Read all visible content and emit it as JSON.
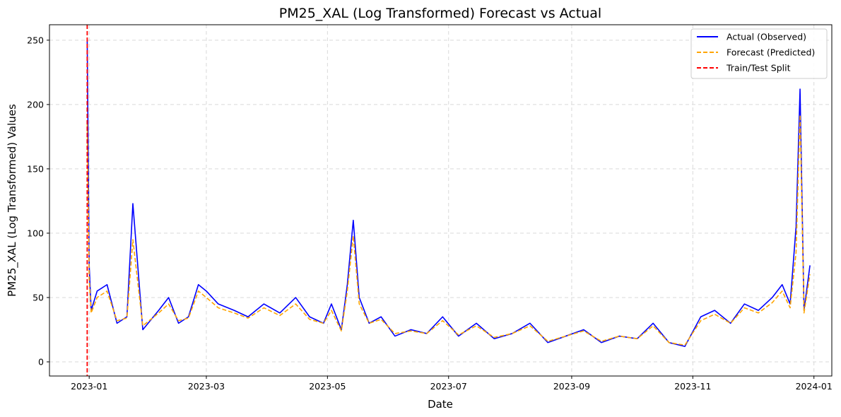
{
  "chart_data": {
    "type": "line",
    "title": "PM25_XAL (Log Transformed) Forecast vs Actual",
    "xlabel": "Date",
    "ylabel": "PM25_XAL (Log Transformed) Values",
    "xlim": [
      "2022-12-12",
      "2024-01-10"
    ],
    "ylim": [
      -11,
      262
    ],
    "x_ticks": [
      "2023-01",
      "2023-03",
      "2023-05",
      "2023-07",
      "2023-09",
      "2023-11",
      "2024-01"
    ],
    "y_ticks": [
      0,
      50,
      100,
      150,
      200,
      250
    ],
    "grid": true,
    "legend_position": "top-right",
    "split_date": "2022-12-31",
    "series": [
      {
        "name": "Actual (Observed)",
        "color": "#0000ff",
        "style": "solid",
        "x": [
          "2022-12-31",
          "2023-01-01",
          "2023-01-02",
          "2023-01-05",
          "2023-01-10",
          "2023-01-15",
          "2023-01-20",
          "2023-01-23",
          "2023-01-28",
          "2023-02-05",
          "2023-02-10",
          "2023-02-15",
          "2023-02-20",
          "2023-02-25",
          "2023-03-01",
          "2023-03-07",
          "2023-03-15",
          "2023-03-22",
          "2023-03-30",
          "2023-04-07",
          "2023-04-15",
          "2023-04-22",
          "2023-04-29",
          "2023-05-03",
          "2023-05-08",
          "2023-05-11",
          "2023-05-14",
          "2023-05-17",
          "2023-05-22",
          "2023-05-28",
          "2023-06-04",
          "2023-06-12",
          "2023-06-20",
          "2023-06-28",
          "2023-07-06",
          "2023-07-15",
          "2023-07-24",
          "2023-08-02",
          "2023-08-11",
          "2023-08-20",
          "2023-08-29",
          "2023-09-07",
          "2023-09-16",
          "2023-09-25",
          "2023-10-04",
          "2023-10-12",
          "2023-10-20",
          "2023-10-28",
          "2023-11-05",
          "2023-11-12",
          "2023-11-20",
          "2023-11-27",
          "2023-12-04",
          "2023-12-11",
          "2023-12-16",
          "2023-12-20",
          "2023-12-23",
          "2023-12-25",
          "2023-12-27",
          "2023-12-30"
        ],
        "values": [
          250,
          75,
          40,
          55,
          60,
          30,
          35,
          123,
          25,
          40,
          50,
          30,
          35,
          60,
          55,
          45,
          40,
          35,
          45,
          38,
          50,
          35,
          30,
          45,
          25,
          60,
          110,
          50,
          30,
          35,
          20,
          25,
          22,
          35,
          20,
          30,
          18,
          22,
          30,
          15,
          20,
          25,
          15,
          20,
          18,
          30,
          15,
          12,
          35,
          40,
          30,
          45,
          40,
          50,
          60,
          45,
          105,
          212,
          40,
          75
        ]
      },
      {
        "name": "Forecast (Predicted)",
        "color": "#ffa500",
        "style": "dashed",
        "x": [
          "2022-12-31",
          "2023-01-01",
          "2023-01-02",
          "2023-01-05",
          "2023-01-10",
          "2023-01-15",
          "2023-01-20",
          "2023-01-23",
          "2023-01-28",
          "2023-02-05",
          "2023-02-10",
          "2023-02-15",
          "2023-02-20",
          "2023-02-25",
          "2023-03-01",
          "2023-03-07",
          "2023-03-15",
          "2023-03-22",
          "2023-03-30",
          "2023-04-07",
          "2023-04-15",
          "2023-04-22",
          "2023-04-29",
          "2023-05-03",
          "2023-05-08",
          "2023-05-11",
          "2023-05-14",
          "2023-05-17",
          "2023-05-22",
          "2023-05-28",
          "2023-06-04",
          "2023-06-12",
          "2023-06-20",
          "2023-06-28",
          "2023-07-06",
          "2023-07-15",
          "2023-07-24",
          "2023-08-02",
          "2023-08-11",
          "2023-08-20",
          "2023-08-29",
          "2023-09-07",
          "2023-09-16",
          "2023-09-25",
          "2023-10-04",
          "2023-10-12",
          "2023-10-20",
          "2023-10-28",
          "2023-11-05",
          "2023-11-12",
          "2023-11-20",
          "2023-11-27",
          "2023-12-04",
          "2023-12-11",
          "2023-12-16",
          "2023-12-20",
          "2023-12-23",
          "2023-12-25",
          "2023-12-27",
          "2023-12-30"
        ],
        "values": [
          185,
          65,
          38,
          50,
          55,
          32,
          34,
          95,
          28,
          38,
          45,
          32,
          34,
          55,
          50,
          42,
          38,
          34,
          42,
          36,
          45,
          33,
          30,
          40,
          24,
          55,
          98,
          45,
          30,
          33,
          22,
          24,
          22,
          32,
          21,
          28,
          19,
          22,
          28,
          16,
          20,
          24,
          16,
          20,
          18,
          28,
          15,
          13,
          32,
          37,
          30,
          42,
          38,
          46,
          55,
          42,
          85,
          192,
          38,
          68
        ]
      }
    ],
    "split_line": {
      "name": "Train/Test Split",
      "color": "#ff0000",
      "style": "dashed"
    }
  }
}
